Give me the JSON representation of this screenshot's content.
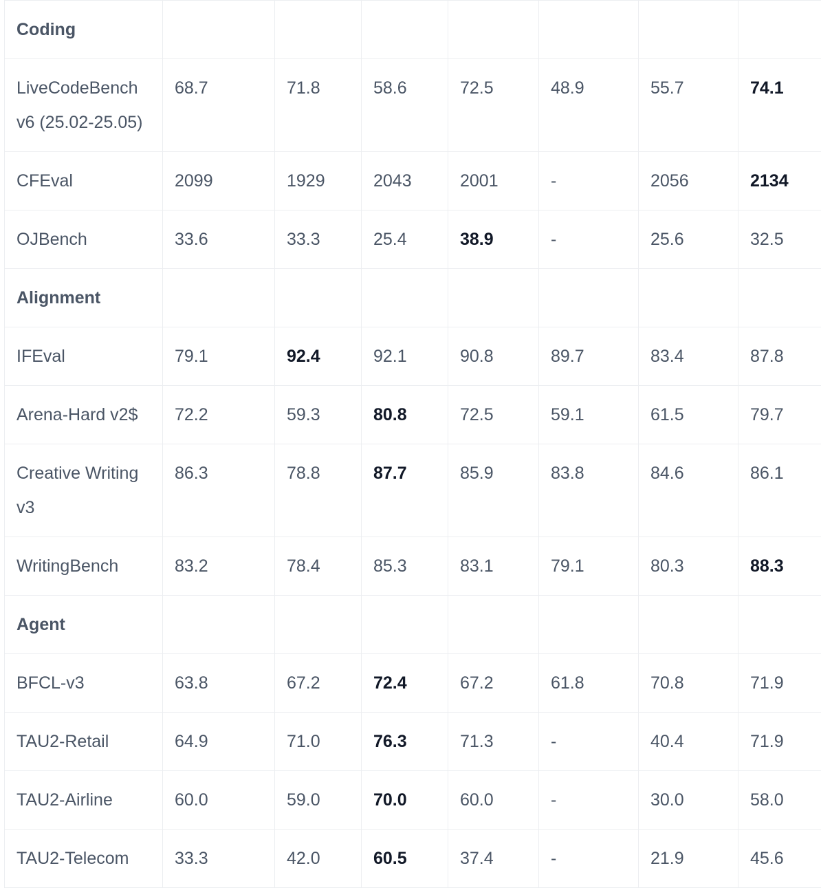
{
  "rows": [
    {
      "type": "section",
      "label": "Coding"
    },
    {
      "type": "data",
      "label": "LiveCodeBench v6 (25.02-25.05)",
      "values": [
        "68.7",
        "71.8",
        "58.6",
        "72.5",
        "48.9",
        "55.7",
        "74.1"
      ],
      "best": 6
    },
    {
      "type": "data",
      "label": "CFEval",
      "values": [
        "2099",
        "1929",
        "2043",
        "2001",
        "-",
        "2056",
        "2134"
      ],
      "best": 6
    },
    {
      "type": "data",
      "label": "OJBench",
      "values": [
        "33.6",
        "33.3",
        "25.4",
        "38.9",
        "-",
        "25.6",
        "32.5"
      ],
      "best": 3
    },
    {
      "type": "section",
      "label": "Alignment"
    },
    {
      "type": "data",
      "label": "IFEval",
      "values": [
        "79.1",
        "92.4",
        "92.1",
        "90.8",
        "89.7",
        "83.4",
        "87.8"
      ],
      "best": 1
    },
    {
      "type": "data",
      "label": "Arena-Hard v2$",
      "values": [
        "72.2",
        "59.3",
        "80.8",
        "72.5",
        "59.1",
        "61.5",
        "79.7"
      ],
      "best": 2
    },
    {
      "type": "data",
      "label": "Creative Writing v3",
      "values": [
        "86.3",
        "78.8",
        "87.7",
        "85.9",
        "83.8",
        "84.6",
        "86.1"
      ],
      "best": 2
    },
    {
      "type": "data",
      "label": "WritingBench",
      "values": [
        "83.2",
        "78.4",
        "85.3",
        "83.1",
        "79.1",
        "80.3",
        "88.3"
      ],
      "best": 6
    },
    {
      "type": "section",
      "label": "Agent"
    },
    {
      "type": "data",
      "label": "BFCL-v3",
      "values": [
        "63.8",
        "67.2",
        "72.4",
        "67.2",
        "61.8",
        "70.8",
        "71.9"
      ],
      "best": 2
    },
    {
      "type": "data",
      "label": "TAU2-Retail",
      "values": [
        "64.9",
        "71.0",
        "76.3",
        "71.3",
        "-",
        "40.4",
        "71.9"
      ],
      "best": 2
    },
    {
      "type": "data",
      "label": "TAU2-Airline",
      "values": [
        "60.0",
        "59.0",
        "70.0",
        "60.0",
        "-",
        "30.0",
        "58.0"
      ],
      "best": 2
    },
    {
      "type": "data",
      "label": "TAU2-Telecom",
      "values": [
        "33.3",
        "42.0",
        "60.5",
        "37.4",
        "-",
        "21.9",
        "45.6"
      ],
      "best": 2
    }
  ]
}
